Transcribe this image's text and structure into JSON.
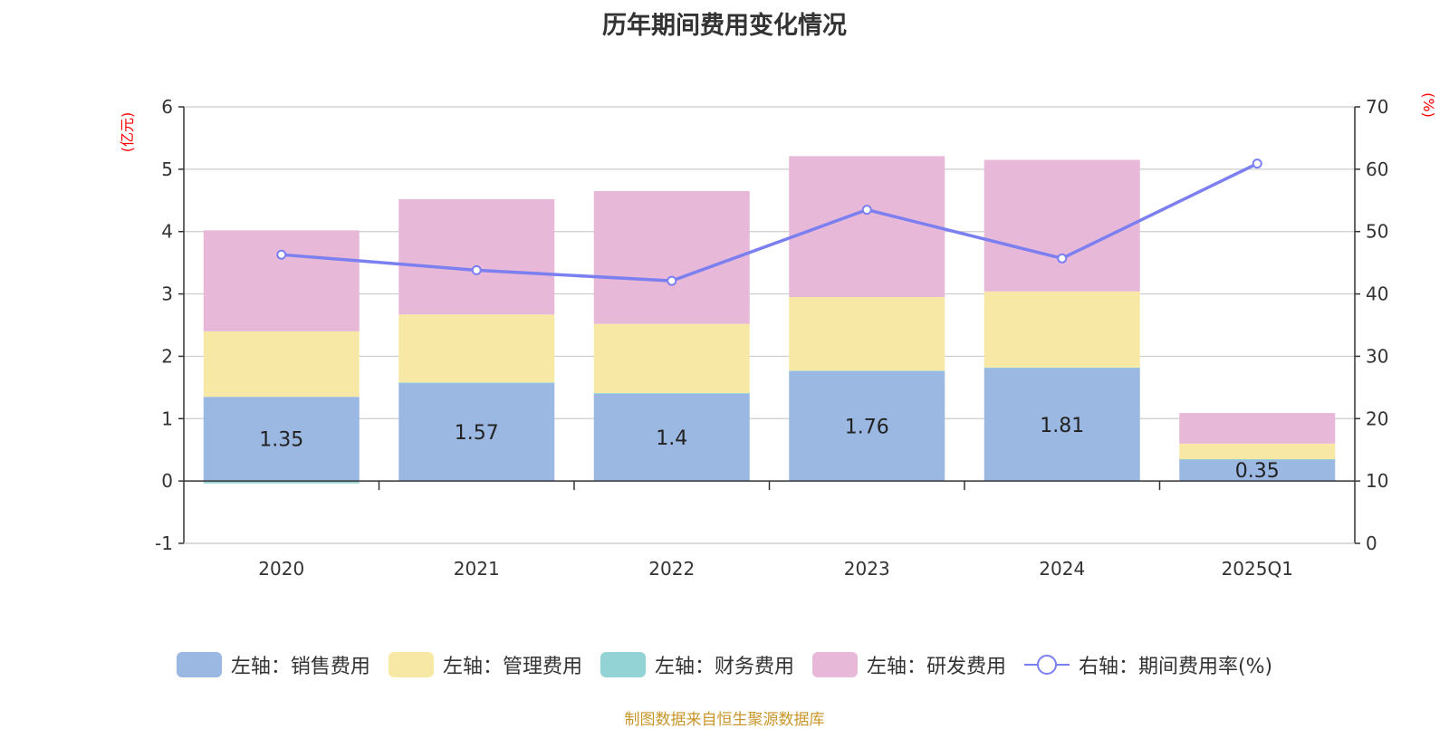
{
  "chart_data": {
    "type": "bar",
    "title": "历年期间费用变化情况",
    "categories": [
      "2020",
      "2021",
      "2022",
      "2023",
      "2024",
      "2025Q1"
    ],
    "y_left": {
      "unit_label": "(亿元)",
      "range": [
        -1,
        6
      ],
      "ticks": [
        -1,
        0,
        1,
        2,
        3,
        4,
        5,
        6
      ]
    },
    "y_right": {
      "unit_label": "(%)",
      "range": [
        0,
        70
      ],
      "ticks": [
        0,
        10,
        20,
        30,
        40,
        50,
        60,
        70
      ]
    },
    "stacked": true,
    "series": [
      {
        "name": "左轴：销售费用",
        "axis": "left",
        "color": "#9bb8e3",
        "values": [
          1.35,
          1.57,
          1.4,
          1.76,
          1.81,
          0.35
        ],
        "show_labels": true
      },
      {
        "name": "左轴：财务费用",
        "axis": "left",
        "color": "#93d3d5",
        "values": [
          -0.04,
          0.01,
          0.01,
          0.01,
          0.01,
          0.0
        ]
      },
      {
        "name": "左轴：管理费用",
        "axis": "left",
        "color": "#f8e8a6",
        "values": [
          1.05,
          1.09,
          1.11,
          1.18,
          1.22,
          0.25
        ]
      },
      {
        "name": "左轴：研发费用",
        "axis": "left",
        "color": "#e8b8d9",
        "values": [
          1.62,
          1.85,
          2.13,
          2.26,
          2.11,
          0.49
        ]
      },
      {
        "name": "右轴：期间费用率(%)",
        "axis": "right",
        "type": "line",
        "color": "#7b7ff0",
        "values": [
          46.3,
          43.8,
          42.1,
          53.5,
          45.7,
          60.9
        ]
      }
    ],
    "legend_order": [
      "左轴：销售费用",
      "左轴：管理费用",
      "左轴：财务费用",
      "左轴：研发费用",
      "右轴：期间费用率(%)"
    ],
    "grid": true,
    "legend_position": "bottom"
  },
  "source": "制图数据来自恒生聚源数据库"
}
